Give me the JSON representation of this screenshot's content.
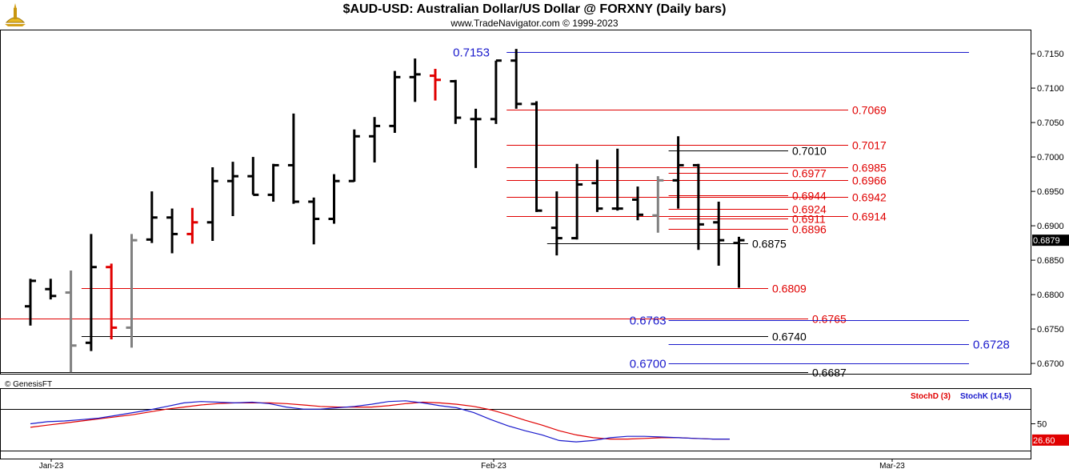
{
  "header": {
    "title": "$AUD-USD:  Australian Dollar/US Dollar @ FORXNY  (Daily bars)",
    "subtitle": "www.TradeNavigator.com © 1999-2023"
  },
  "colors": {
    "up_bar": "#000000",
    "neutral_bar": "#808080",
    "highlight_bar": "#e00000",
    "red_level": "#e00000",
    "blue_level": "#1a1acc",
    "black_level": "#000000",
    "stoch_d": "#e00000",
    "stoch_k": "#1a1acc"
  },
  "chart_data": [
    {
      "type": "ohlc",
      "title": "$AUD-USD:  Australian Dollar/US Dollar @ FORXNY  (Daily bars)",
      "ylim": [
        0.6685,
        0.7185
      ],
      "y_ticks": [
        "0.7150",
        "0.7100",
        "0.7050",
        "0.7000",
        "0.6950",
        "0.6900",
        "0.6850",
        "0.6800",
        "0.6750",
        "0.6700"
      ],
      "x_ticks": [
        "Jan-23",
        "Feb-23",
        "Mar-23"
      ],
      "last_price": "0.6879",
      "copyright": "© GenesisFT",
      "bars": [
        {
          "o": 0.6783,
          "h": 0.6823,
          "l": 0.6755,
          "c": 0.682,
          "color": "black"
        },
        {
          "o": 0.6808,
          "h": 0.6823,
          "l": 0.6793,
          "c": 0.6798,
          "color": "black"
        },
        {
          "o": 0.6803,
          "h": 0.6835,
          "l": 0.6687,
          "c": 0.6726,
          "color": "gray"
        },
        {
          "o": 0.673,
          "h": 0.6888,
          "l": 0.6718,
          "c": 0.684,
          "color": "black"
        },
        {
          "o": 0.684,
          "h": 0.6845,
          "l": 0.6735,
          "c": 0.6752,
          "color": "red"
        },
        {
          "o": 0.6752,
          "h": 0.6888,
          "l": 0.6723,
          "c": 0.6879,
          "color": "gray"
        },
        {
          "o": 0.688,
          "h": 0.695,
          "l": 0.6875,
          "c": 0.6912,
          "color": "black"
        },
        {
          "o": 0.6912,
          "h": 0.6925,
          "l": 0.686,
          "c": 0.6888,
          "color": "black"
        },
        {
          "o": 0.6888,
          "h": 0.6926,
          "l": 0.6874,
          "c": 0.6905,
          "color": "red"
        },
        {
          "o": 0.6905,
          "h": 0.6985,
          "l": 0.6878,
          "c": 0.6965,
          "color": "black"
        },
        {
          "o": 0.6965,
          "h": 0.6993,
          "l": 0.6914,
          "c": 0.6972,
          "color": "black"
        },
        {
          "o": 0.6972,
          "h": 0.7,
          "l": 0.6945,
          "c": 0.6945,
          "color": "black"
        },
        {
          "o": 0.6945,
          "h": 0.699,
          "l": 0.6935,
          "c": 0.6988,
          "color": "black"
        },
        {
          "o": 0.6988,
          "h": 0.7063,
          "l": 0.6932,
          "c": 0.6935,
          "color": "black"
        },
        {
          "o": 0.6935,
          "h": 0.6941,
          "l": 0.6873,
          "c": 0.691,
          "color": "black"
        },
        {
          "o": 0.691,
          "h": 0.6975,
          "l": 0.6903,
          "c": 0.6965,
          "color": "black"
        },
        {
          "o": 0.6965,
          "h": 0.704,
          "l": 0.6964,
          "c": 0.703,
          "color": "black"
        },
        {
          "o": 0.703,
          "h": 0.7058,
          "l": 0.6992,
          "c": 0.7045,
          "color": "black"
        },
        {
          "o": 0.7045,
          "h": 0.7125,
          "l": 0.7035,
          "c": 0.7116,
          "color": "black"
        },
        {
          "o": 0.7116,
          "h": 0.7143,
          "l": 0.708,
          "c": 0.712,
          "color": "black"
        },
        {
          "o": 0.7118,
          "h": 0.7128,
          "l": 0.7082,
          "c": 0.7112,
          "color": "red"
        },
        {
          "o": 0.711,
          "h": 0.7112,
          "l": 0.7048,
          "c": 0.7057,
          "color": "black"
        },
        {
          "o": 0.7055,
          "h": 0.707,
          "l": 0.6984,
          "c": 0.7055,
          "color": "black"
        },
        {
          "o": 0.7055,
          "h": 0.714,
          "l": 0.7048,
          "c": 0.714,
          "color": "black"
        },
        {
          "o": 0.714,
          "h": 0.7157,
          "l": 0.707,
          "c": 0.7077,
          "color": "black"
        },
        {
          "o": 0.7077,
          "h": 0.7081,
          "l": 0.692,
          "c": 0.6922,
          "color": "black"
        },
        {
          "o": 0.6897,
          "h": 0.695,
          "l": 0.6857,
          "c": 0.6882,
          "color": "black"
        },
        {
          "o": 0.6882,
          "h": 0.699,
          "l": 0.688,
          "c": 0.696,
          "color": "black"
        },
        {
          "o": 0.6962,
          "h": 0.6996,
          "l": 0.692,
          "c": 0.6925,
          "color": "black"
        },
        {
          "o": 0.6925,
          "h": 0.7012,
          "l": 0.6922,
          "c": 0.6925,
          "color": "black"
        },
        {
          "o": 0.6938,
          "h": 0.6957,
          "l": 0.6908,
          "c": 0.6916,
          "color": "black"
        },
        {
          "o": 0.6915,
          "h": 0.6972,
          "l": 0.689,
          "c": 0.6966,
          "color": "gray"
        },
        {
          "o": 0.6966,
          "h": 0.703,
          "l": 0.6925,
          "c": 0.6988,
          "color": "black"
        },
        {
          "o": 0.6988,
          "h": 0.699,
          "l": 0.6865,
          "c": 0.6902,
          "color": "black"
        },
        {
          "o": 0.6905,
          "h": 0.6935,
          "l": 0.6842,
          "c": 0.6879,
          "color": "black"
        },
        {
          "o": 0.6875,
          "h": 0.6884,
          "l": 0.681,
          "c": 0.6879,
          "color": "black"
        }
      ],
      "levels": [
        {
          "value": "0.7153",
          "color": "blue",
          "start": 24,
          "label_side": "left"
        },
        {
          "value": "0.7069",
          "color": "red",
          "start": 24,
          "label_side": "right"
        },
        {
          "value": "0.7017",
          "color": "red",
          "start": 24,
          "label_side": "right"
        },
        {
          "value": "0.7010",
          "color": "black",
          "start": 32,
          "label_side": "right"
        },
        {
          "value": "0.6985",
          "color": "red",
          "start": 24,
          "label_side": "right"
        },
        {
          "value": "0.6977",
          "color": "red",
          "start": 32,
          "label_side": "right"
        },
        {
          "value": "0.6966",
          "color": "red",
          "start": 24,
          "label_side": "right"
        },
        {
          "value": "0.6944",
          "color": "red",
          "start": 32,
          "label_side": "right"
        },
        {
          "value": "0.6942",
          "color": "red",
          "start": 24,
          "label_side": "right"
        },
        {
          "value": "0.6924",
          "color": "red",
          "start": 32,
          "label_side": "right"
        },
        {
          "value": "0.6914",
          "color": "red",
          "start": 24,
          "label_side": "right"
        },
        {
          "value": "0.6911",
          "color": "red",
          "start": 32,
          "label_side": "right"
        },
        {
          "value": "0.6896",
          "color": "red",
          "start": 32,
          "label_side": "right"
        },
        {
          "value": "0.6875",
          "color": "black",
          "start": 26,
          "label_side": "right"
        },
        {
          "value": "0.6809",
          "color": "red",
          "start": 3,
          "label_side": "right"
        },
        {
          "value": "0.6765",
          "color": "red",
          "start": 0,
          "label_side": "right"
        },
        {
          "value": "0.6763",
          "color": "blue",
          "start": 32,
          "label_side": "left"
        },
        {
          "value": "0.6740",
          "color": "black",
          "start": 3,
          "label_side": "right"
        },
        {
          "value": "0.6728",
          "color": "blue",
          "start": 32,
          "label_side": "right"
        },
        {
          "value": "0.6700",
          "color": "blue",
          "start": 32,
          "label_side": "left"
        },
        {
          "value": "0.6687",
          "color": "black",
          "start": 0,
          "label_side": "right"
        }
      ]
    },
    {
      "type": "line",
      "ylim": [
        0,
        100
      ],
      "y_ticks": [
        "50"
      ],
      "series": [
        {
          "name": "StochD (3)",
          "values": [
            45,
            48,
            51,
            54,
            57,
            60,
            63,
            67,
            71,
            74,
            77,
            79,
            80,
            80,
            80,
            79,
            77,
            75,
            74,
            74,
            74,
            76,
            79,
            81,
            80,
            78,
            75,
            70,
            63,
            55,
            48,
            40,
            34,
            30,
            28,
            28,
            29,
            30,
            30,
            29,
            28,
            28
          ]
        },
        {
          "name": "StochK (14,5)",
          "values": [
            50,
            53,
            54,
            56,
            58,
            62,
            66,
            70,
            75,
            80,
            82,
            81,
            80,
            81,
            79,
            74,
            71,
            71,
            73,
            75,
            78,
            82,
            83,
            80,
            76,
            73,
            66,
            56,
            47,
            40,
            34,
            26,
            24,
            26,
            30,
            32,
            32,
            31,
            30,
            29,
            28,
            28
          ]
        }
      ],
      "last_value": "26.60"
    }
  ]
}
